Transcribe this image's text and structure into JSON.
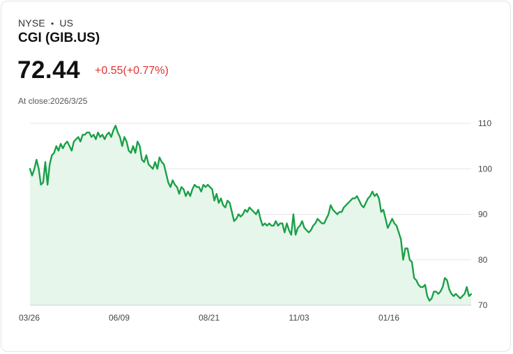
{
  "header": {
    "exchange": "NYSE",
    "country": "US",
    "name": "CGI (GIB.US)",
    "price": "72.44",
    "change": "+0.55(+0.77%)",
    "close_label": "At close:2026/3/25"
  },
  "colors": {
    "line": "#1aa048",
    "fill": "#e6f6ea",
    "negative": "#e03131",
    "grid": "#e6e6e6"
  },
  "chart_data": {
    "type": "area",
    "title": "CGI (GIB.US)",
    "ylim": [
      70,
      110
    ],
    "yticks": [
      110,
      100,
      90,
      80,
      70
    ],
    "xticks": [
      "03/26",
      "06/09",
      "08/21",
      "11/03",
      "01/16"
    ],
    "x_range": [
      "03/26",
      "03/25"
    ],
    "values": [
      100,
      98.5,
      100,
      102,
      100,
      96.5,
      97,
      101.5,
      96.5,
      101,
      103,
      103.5,
      105,
      104,
      105.5,
      104.5,
      105.5,
      106,
      105,
      104,
      106,
      106.5,
      107,
      106,
      107.5,
      107.5,
      108,
      108,
      107,
      107.5,
      106.5,
      108,
      107,
      107.5,
      106.5,
      107.5,
      108,
      107,
      108.5,
      109.5,
      108,
      107,
      105,
      107,
      106,
      104,
      103.5,
      105,
      103.5,
      106,
      105,
      102,
      101.5,
      103,
      101,
      100.5,
      100,
      101.5,
      100,
      102.5,
      101.5,
      101,
      99,
      97,
      96,
      97.5,
      96.5,
      96,
      94.5,
      96,
      95.5,
      94,
      95,
      94,
      95.5,
      96.5,
      96,
      96,
      95,
      96.5,
      96,
      96.5,
      96,
      95.5,
      93,
      94.5,
      92.5,
      93.5,
      92,
      91.5,
      93,
      92.5,
      90.5,
      88.5,
      89,
      90,
      89.5,
      90,
      91,
      90.5,
      91.5,
      91,
      90.5,
      90,
      91,
      89,
      87.5,
      88,
      87.5,
      88,
      87.5,
      87.5,
      88.5,
      87.5,
      88,
      88,
      86,
      88,
      86.5,
      85.5,
      90,
      85.5,
      87,
      87.5,
      88.5,
      87,
      86.5,
      86,
      86.5,
      87.5,
      88,
      89,
      88.5,
      88,
      88,
      89,
      90,
      92,
      91,
      90.5,
      90,
      90.5,
      90.5,
      91.5,
      92,
      92.5,
      93,
      93.5,
      93.5,
      94,
      93,
      92,
      91.5,
      92.5,
      93.5,
      94,
      95,
      94,
      94.5,
      93.5,
      90.5,
      91,
      89,
      87,
      88,
      89,
      88,
      87.5,
      86,
      84.5,
      80,
      82.5,
      82.5,
      80,
      79.5,
      76,
      75.5,
      74.5,
      74,
      74,
      74.5,
      72,
      71,
      71.5,
      73,
      73,
      72.5,
      73,
      74,
      76,
      75.5,
      73.5,
      72.5,
      72,
      72.5,
      72,
      71.5,
      72,
      72.5,
      74,
      72,
      72.44
    ]
  }
}
